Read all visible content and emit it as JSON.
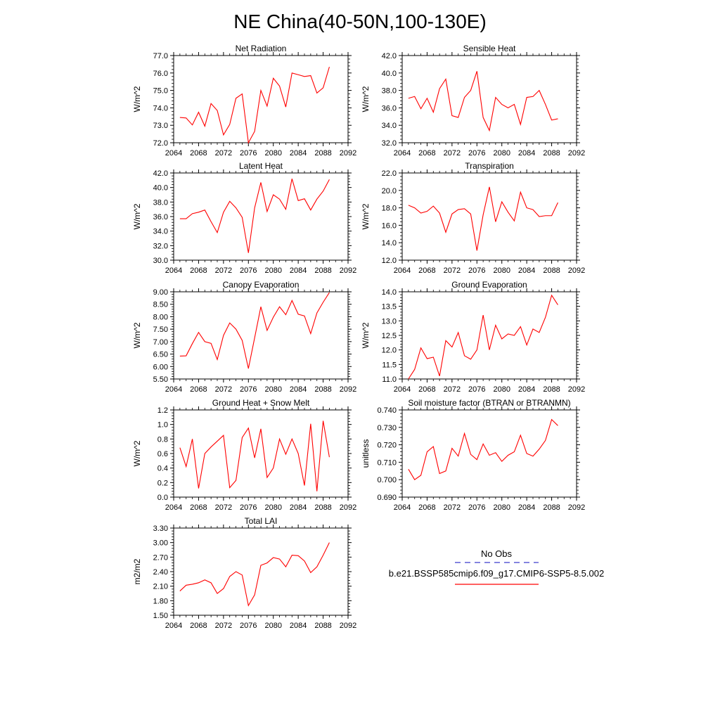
{
  "figure": {
    "title": "NE China(40-50N,100-130E)"
  },
  "legend": {
    "obs_label": "No Obs",
    "obs_color": "#3b3bcc",
    "model_label": "b.e21.BSSP585cmip6.f09_g17.CMIP6-SSP5-8.5.002",
    "model_color": "#ff0000"
  },
  "chart_data": [
    {
      "type": "line",
      "title": "Net Radiation",
      "ylabel": "W/m^2",
      "xlim": [
        2064,
        2092
      ],
      "ylim": [
        72.0,
        77.0
      ],
      "xticks": [
        "2064",
        "2068",
        "2072",
        "2076",
        "2080",
        "2084",
        "2088",
        "2092"
      ],
      "yticks": [
        "72.0",
        "73.0",
        "74.0",
        "75.0",
        "76.0",
        "77.0"
      ],
      "x": [
        2065,
        2066,
        2067,
        2068,
        2069,
        2070,
        2071,
        2072,
        2073,
        2074,
        2075,
        2076,
        2077,
        2078,
        2079,
        2080,
        2081,
        2082,
        2083,
        2084,
        2085,
        2086,
        2087,
        2088,
        2089
      ],
      "series": [
        {
          "color": "#ff0000",
          "values": [
            73.45,
            73.42,
            73.02,
            73.75,
            72.95,
            74.25,
            73.85,
            72.45,
            73.05,
            74.55,
            74.8,
            72.0,
            72.65,
            75.0,
            74.1,
            75.7,
            75.25,
            74.05,
            76.0,
            75.9,
            75.8,
            75.85,
            74.85,
            75.15,
            76.35
          ]
        }
      ]
    },
    {
      "type": "line",
      "title": "Sensible Heat",
      "ylabel": "W/m^2",
      "xlim": [
        2064,
        2092
      ],
      "ylim": [
        32.0,
        42.0
      ],
      "xticks": [
        "2064",
        "2068",
        "2072",
        "2076",
        "2080",
        "2084",
        "2088",
        "2092"
      ],
      "yticks": [
        "32.0",
        "34.0",
        "36.0",
        "38.0",
        "40.0",
        "42.0"
      ],
      "x": [
        2065,
        2066,
        2067,
        2068,
        2069,
        2070,
        2071,
        2072,
        2073,
        2074,
        2075,
        2076,
        2077,
        2078,
        2079,
        2080,
        2081,
        2082,
        2083,
        2084,
        2085,
        2086,
        2087,
        2088,
        2089
      ],
      "series": [
        {
          "color": "#ff0000",
          "values": [
            37.1,
            37.3,
            35.9,
            37.1,
            35.5,
            38.2,
            39.3,
            35.1,
            34.9,
            37.2,
            38.0,
            40.2,
            34.9,
            33.4,
            37.2,
            36.4,
            36.0,
            36.4,
            34.1,
            37.2,
            37.3,
            38.0,
            36.4,
            34.6,
            34.75
          ]
        }
      ]
    },
    {
      "type": "line",
      "title": "Latent Heat",
      "ylabel": "W/m^2",
      "xlim": [
        2064,
        2092
      ],
      "ylim": [
        30.0,
        42.0
      ],
      "xticks": [
        "2064",
        "2068",
        "2072",
        "2076",
        "2080",
        "2084",
        "2088",
        "2092"
      ],
      "yticks": [
        "30.0",
        "32.0",
        "34.0",
        "36.0",
        "38.0",
        "40.0",
        "42.0"
      ],
      "x": [
        2065,
        2066,
        2067,
        2068,
        2069,
        2070,
        2071,
        2072,
        2073,
        2074,
        2075,
        2076,
        2077,
        2078,
        2079,
        2080,
        2081,
        2082,
        2083,
        2084,
        2085,
        2086,
        2087,
        2088,
        2089
      ],
      "series": [
        {
          "color": "#ff0000",
          "values": [
            35.7,
            35.7,
            36.4,
            36.6,
            36.9,
            35.3,
            33.8,
            36.6,
            38.1,
            37.2,
            35.9,
            31.0,
            37.2,
            40.7,
            36.7,
            39.0,
            38.4,
            37.0,
            41.2,
            38.2,
            38.45,
            36.9,
            38.4,
            39.5,
            41.1
          ]
        }
      ]
    },
    {
      "type": "line",
      "title": "Transpiration",
      "ylabel": "W/m^2",
      "xlim": [
        2064,
        2092
      ],
      "ylim": [
        12.0,
        22.0
      ],
      "xticks": [
        "2064",
        "2068",
        "2072",
        "2076",
        "2080",
        "2084",
        "2088",
        "2092"
      ],
      "yticks": [
        "12.0",
        "14.0",
        "16.0",
        "18.0",
        "20.0",
        "22.0"
      ],
      "x": [
        2065,
        2066,
        2067,
        2068,
        2069,
        2070,
        2071,
        2072,
        2073,
        2074,
        2075,
        2076,
        2077,
        2078,
        2079,
        2080,
        2081,
        2082,
        2083,
        2084,
        2085,
        2086,
        2087,
        2088,
        2089
      ],
      "series": [
        {
          "color": "#ff0000",
          "values": [
            18.3,
            18.0,
            17.4,
            17.6,
            18.2,
            17.4,
            15.2,
            17.3,
            17.8,
            17.9,
            17.3,
            13.1,
            17.2,
            20.4,
            16.4,
            18.7,
            17.5,
            16.5,
            19.8,
            18.0,
            17.8,
            17.0,
            17.1,
            17.1,
            18.6
          ]
        }
      ]
    },
    {
      "type": "line",
      "title": "Canopy Evaporation",
      "ylabel": "W/m^2",
      "xlim": [
        2064,
        2092
      ],
      "ylim": [
        5.5,
        9.0
      ],
      "xticks": [
        "2064",
        "2068",
        "2072",
        "2076",
        "2080",
        "2084",
        "2088",
        "2092"
      ],
      "yticks": [
        "5.50",
        "6.00",
        "6.50",
        "7.00",
        "7.50",
        "8.00",
        "8.50",
        "9.00"
      ],
      "x": [
        2065,
        2066,
        2067,
        2068,
        2069,
        2070,
        2071,
        2072,
        2073,
        2074,
        2075,
        2076,
        2077,
        2078,
        2079,
        2080,
        2081,
        2082,
        2083,
        2084,
        2085,
        2086,
        2087,
        2088,
        2089
      ],
      "series": [
        {
          "color": "#ff0000",
          "values": [
            6.42,
            6.43,
            6.92,
            7.37,
            7.0,
            6.93,
            6.28,
            7.25,
            7.75,
            7.5,
            7.05,
            5.92,
            7.15,
            8.4,
            7.45,
            7.98,
            8.4,
            8.08,
            8.65,
            8.1,
            8.03,
            7.32,
            8.15,
            8.58,
            8.97
          ]
        }
      ]
    },
    {
      "type": "line",
      "title": "Ground Evaporation",
      "ylabel": "W/m^2",
      "xlim": [
        2064,
        2092
      ],
      "ylim": [
        11.0,
        14.0
      ],
      "xticks": [
        "2064",
        "2068",
        "2072",
        "2076",
        "2080",
        "2084",
        "2088",
        "2092"
      ],
      "yticks": [
        "11.0",
        "11.5",
        "12.0",
        "12.5",
        "13.0",
        "13.5",
        "14.0"
      ],
      "x": [
        2065,
        2066,
        2067,
        2068,
        2069,
        2070,
        2071,
        2072,
        2073,
        2074,
        2075,
        2076,
        2077,
        2078,
        2079,
        2080,
        2081,
        2082,
        2083,
        2084,
        2085,
        2086,
        2087,
        2088,
        2089
      ],
      "series": [
        {
          "color": "#ff0000",
          "values": [
            11.0,
            11.33,
            12.07,
            11.7,
            11.75,
            11.1,
            12.32,
            12.1,
            12.6,
            11.8,
            11.68,
            12.0,
            13.2,
            12.0,
            12.85,
            12.38,
            12.55,
            12.5,
            12.8,
            12.17,
            12.72,
            12.6,
            13.12,
            13.88,
            13.55
          ]
        }
      ]
    },
    {
      "type": "line",
      "title": "Ground Heat + Snow Melt",
      "ylabel": "W/m^2",
      "xlim": [
        2064,
        2092
      ],
      "ylim": [
        0.0,
        1.2
      ],
      "xticks": [
        "2064",
        "2068",
        "2072",
        "2076",
        "2080",
        "2084",
        "2088",
        "2092"
      ],
      "yticks": [
        "0.0",
        "0.2",
        "0.4",
        "0.6",
        "0.8",
        "1.0",
        "1.2"
      ],
      "x": [
        2065,
        2066,
        2067,
        2068,
        2069,
        2070,
        2071,
        2072,
        2073,
        2074,
        2075,
        2076,
        2077,
        2078,
        2079,
        2080,
        2081,
        2082,
        2083,
        2084,
        2085,
        2086,
        2087,
        2088,
        2089
      ],
      "series": [
        {
          "color": "#ff0000",
          "values": [
            0.68,
            0.42,
            0.8,
            0.12,
            0.6,
            0.69,
            0.77,
            0.85,
            0.13,
            0.23,
            0.82,
            0.95,
            0.54,
            0.94,
            0.27,
            0.4,
            0.8,
            0.59,
            0.8,
            0.6,
            0.16,
            1.01,
            0.08,
            1.05,
            0.55
          ]
        }
      ]
    },
    {
      "type": "line",
      "title": "Soil moisture factor (BTRAN or BTRANMN)",
      "ylabel": "unitless",
      "xlim": [
        2064,
        2092
      ],
      "ylim": [
        0.69,
        0.74
      ],
      "xticks": [
        "2064",
        "2068",
        "2072",
        "2076",
        "2080",
        "2084",
        "2088",
        "2092"
      ],
      "yticks": [
        "0.690",
        "0.700",
        "0.710",
        "0.720",
        "0.730",
        "0.740"
      ],
      "x": [
        2065,
        2066,
        2067,
        2068,
        2069,
        2070,
        2071,
        2072,
        2073,
        2074,
        2075,
        2076,
        2077,
        2078,
        2079,
        2080,
        2081,
        2082,
        2083,
        2084,
        2085,
        2086,
        2087,
        2088,
        2089
      ],
      "series": [
        {
          "color": "#ff0000",
          "values": [
            0.706,
            0.7,
            0.7025,
            0.716,
            0.719,
            0.7035,
            0.705,
            0.718,
            0.7135,
            0.7265,
            0.7145,
            0.7115,
            0.7205,
            0.714,
            0.7155,
            0.7105,
            0.714,
            0.716,
            0.7255,
            0.715,
            0.7135,
            0.7175,
            0.7225,
            0.7345,
            0.731
          ]
        }
      ]
    },
    {
      "type": "line",
      "title": "Total LAI",
      "ylabel": "m2/m2",
      "xlim": [
        2064,
        2092
      ],
      "ylim": [
        1.5,
        3.3
      ],
      "xticks": [
        "2064",
        "2068",
        "2072",
        "2076",
        "2080",
        "2084",
        "2088",
        "2092"
      ],
      "yticks": [
        "1.50",
        "1.80",
        "2.10",
        "2.40",
        "2.70",
        "3.00",
        "3.30"
      ],
      "x": [
        2065,
        2066,
        2067,
        2068,
        2069,
        2070,
        2071,
        2072,
        2073,
        2074,
        2075,
        2076,
        2077,
        2078,
        2079,
        2080,
        2081,
        2082,
        2083,
        2084,
        2085,
        2086,
        2087,
        2088,
        2089
      ],
      "series": [
        {
          "color": "#ff0000",
          "values": [
            2.0,
            2.12,
            2.14,
            2.17,
            2.23,
            2.17,
            1.95,
            2.05,
            2.3,
            2.4,
            2.33,
            1.7,
            1.92,
            2.53,
            2.58,
            2.69,
            2.66,
            2.5,
            2.74,
            2.73,
            2.62,
            2.38,
            2.5,
            2.74,
            3.0
          ]
        }
      ]
    }
  ]
}
